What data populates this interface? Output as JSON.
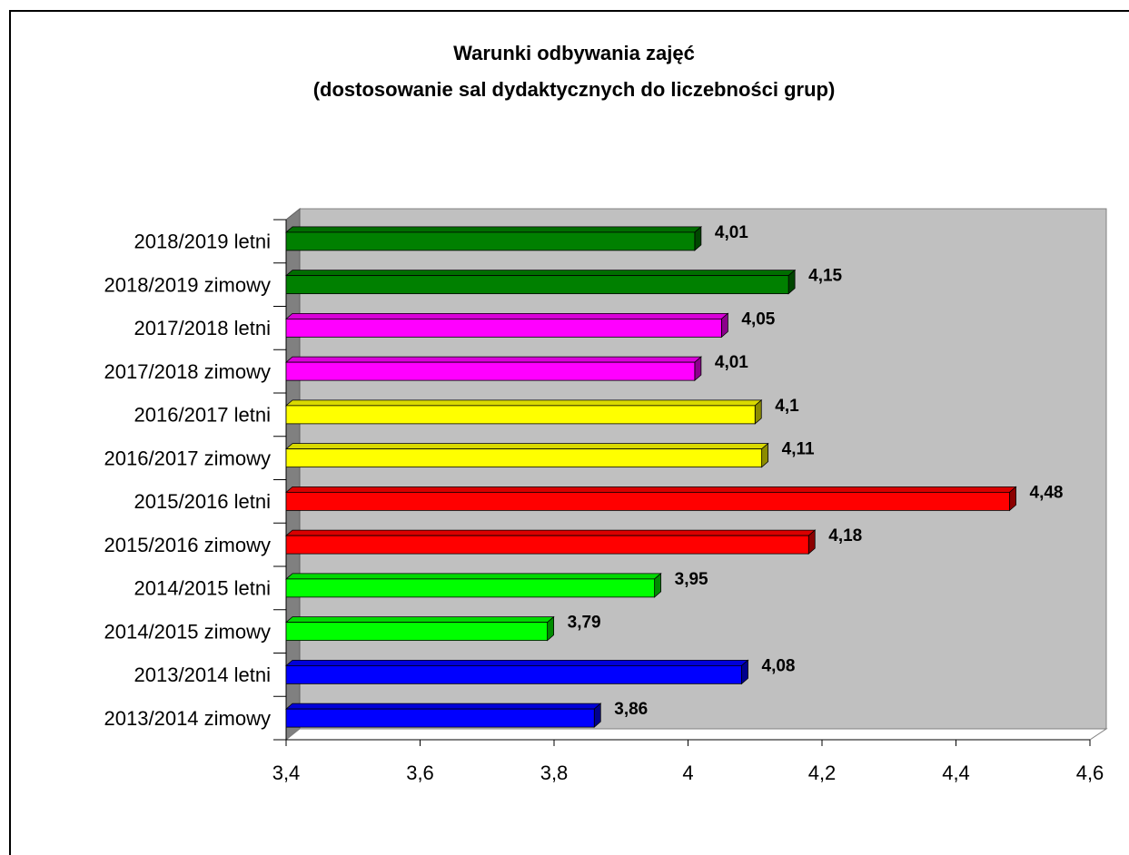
{
  "chart_data": {
    "type": "bar3d_horizontal",
    "title": "Warunki odbywania zajęć",
    "subtitle": "(dostosowanie sal dydaktycznych do liczebności grup)",
    "categories": [
      "2018/2019 letni",
      "2018/2019 zimowy",
      "2017/2018 letni",
      "2017/2018 zimowy",
      "2016/2017 letni",
      "2016/2017 zimowy",
      "2015/2016 letni",
      "2015/2016 zimowy",
      "2014/2015 letni",
      "2014/2015 zimowy",
      "2013/2014 letni",
      "2013/2014 zimowy"
    ],
    "values": [
      4.01,
      4.15,
      4.05,
      4.01,
      4.1,
      4.11,
      4.48,
      4.18,
      3.95,
      3.79,
      4.08,
      3.86
    ],
    "value_labels": [
      "4,01",
      "4,15",
      "4,05",
      "4,01",
      "4,1",
      "4,11",
      "4,48",
      "4,18",
      "3,95",
      "3,79",
      "4,08",
      "3,86"
    ],
    "colors": [
      "#008000",
      "#008000",
      "#ff00ff",
      "#ff00ff",
      "#ffff00",
      "#ffff00",
      "#ff0000",
      "#ff0000",
      "#00ff00",
      "#00ff00",
      "#0000ff",
      "#0000ff"
    ],
    "xlim": [
      3.4,
      4.6
    ],
    "xticks": [
      {
        "value": 3.4,
        "label": "3,4"
      },
      {
        "value": 3.6,
        "label": "3,6"
      },
      {
        "value": 3.8,
        "label": "3,8"
      },
      4,
      {
        "value": 4.2,
        "label": "4,2"
      },
      {
        "value": 4.4,
        "label": "4,4"
      },
      {
        "value": 4.6,
        "label": "4,6"
      }
    ]
  }
}
